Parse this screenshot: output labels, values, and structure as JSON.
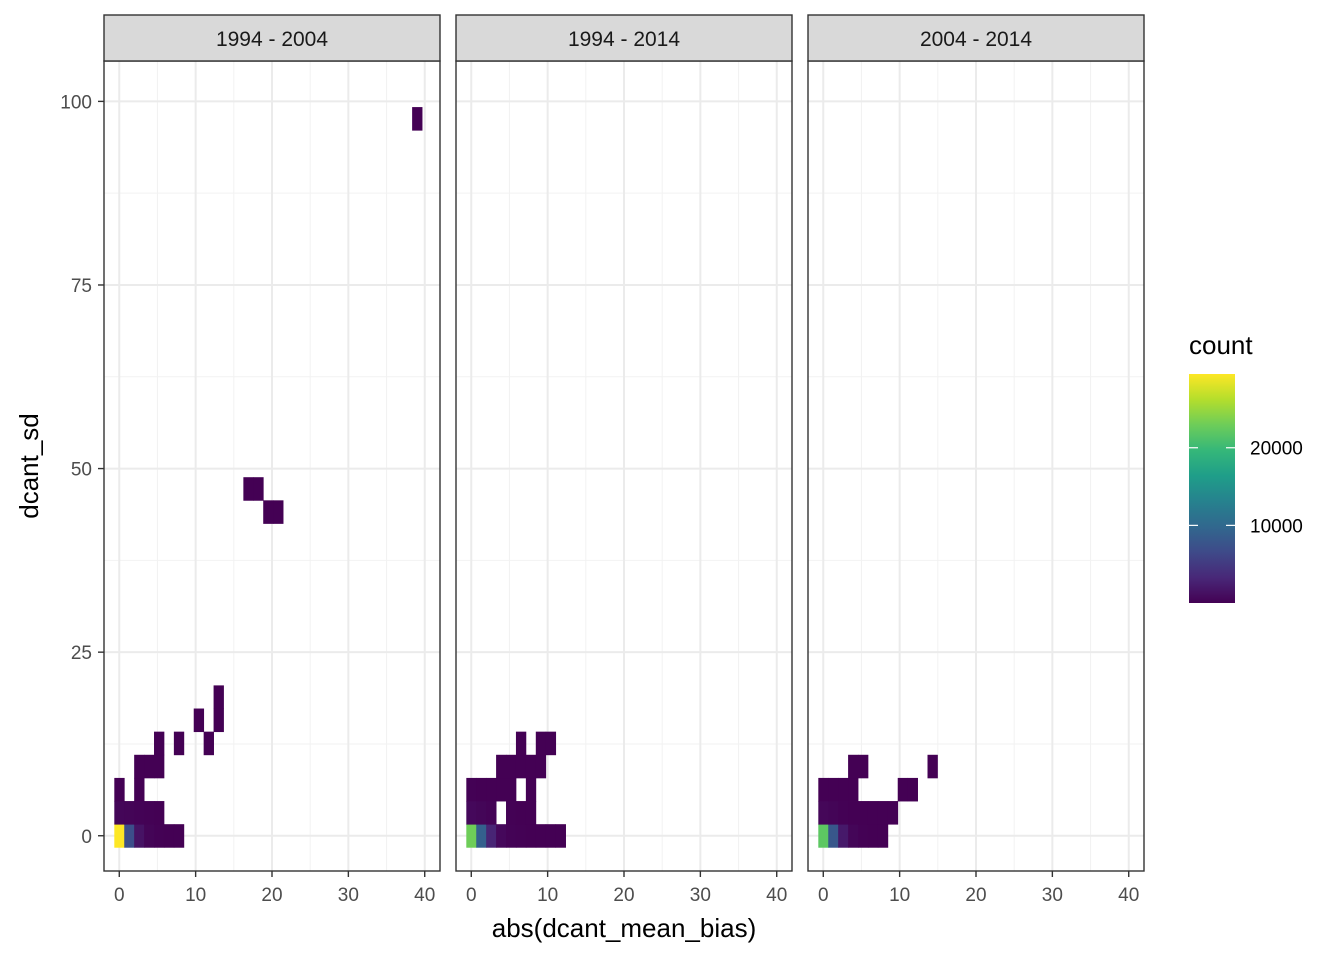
{
  "chart_data": {
    "type": "heatmap",
    "xlabel": "abs(dcant_mean_bias)",
    "ylabel": "dcant_sd",
    "xlim": [
      -2,
      42
    ],
    "ylim": [
      -4.8,
      105.5
    ],
    "x_ticks": [
      0,
      10,
      20,
      30,
      40
    ],
    "y_ticks": [
      0,
      25,
      50,
      75,
      100
    ],
    "grid": true,
    "bin_width_x": 1.3,
    "bin_height_y": 3.15,
    "legend": {
      "title": "count",
      "position": "right",
      "min": 1,
      "max": 29500,
      "ticks": [
        10000,
        20000
      ],
      "colors": [
        "#440154",
        "#482878",
        "#3E4A89",
        "#31688E",
        "#26828E",
        "#1F9E89",
        "#35B779",
        "#6DCD59",
        "#B4DE2C",
        "#FDE725"
      ]
    },
    "panels": [
      {
        "label": "1994 - 2004",
        "bins": [
          {
            "x": 0.0,
            "y": 0.0,
            "count": 29500
          },
          {
            "x": 1.3,
            "y": 0.0,
            "count": 7000
          },
          {
            "x": 2.6,
            "y": 0.0,
            "count": 1500
          },
          {
            "x": 3.9,
            "y": 0.0,
            "count": 300
          },
          {
            "x": 5.2,
            "y": 0.0,
            "count": 100
          },
          {
            "x": 6.5,
            "y": 0.0,
            "count": 20
          },
          {
            "x": 7.8,
            "y": 0.0,
            "count": 5
          },
          {
            "x": 0.0,
            "y": 3.15,
            "count": 400
          },
          {
            "x": 1.3,
            "y": 3.15,
            "count": 300
          },
          {
            "x": 2.6,
            "y": 3.15,
            "count": 150
          },
          {
            "x": 3.9,
            "y": 3.15,
            "count": 60
          },
          {
            "x": 5.2,
            "y": 3.15,
            "count": 20
          },
          {
            "x": 0.0,
            "y": 6.3,
            "count": 10
          },
          {
            "x": 2.6,
            "y": 6.3,
            "count": 5
          },
          {
            "x": 2.6,
            "y": 9.45,
            "count": 5
          },
          {
            "x": 3.9,
            "y": 9.45,
            "count": 5
          },
          {
            "x": 5.2,
            "y": 9.45,
            "count": 3
          },
          {
            "x": 5.2,
            "y": 12.6,
            "count": 2
          },
          {
            "x": 7.8,
            "y": 12.6,
            "count": 2
          },
          {
            "x": 11.7,
            "y": 12.6,
            "count": 1
          },
          {
            "x": 10.4,
            "y": 15.75,
            "count": 1
          },
          {
            "x": 13.0,
            "y": 15.75,
            "count": 1
          },
          {
            "x": 13.0,
            "y": 18.9,
            "count": 1
          },
          {
            "x": 19.5,
            "y": 44.1,
            "count": 1
          },
          {
            "x": 20.8,
            "y": 44.1,
            "count": 1
          },
          {
            "x": 16.9,
            "y": 47.25,
            "count": 1
          },
          {
            "x": 18.2,
            "y": 47.25,
            "count": 1
          },
          {
            "x": 39.0,
            "y": 97.65,
            "count": 1
          }
        ]
      },
      {
        "label": "1994 - 2014",
        "bins": [
          {
            "x": 0.0,
            "y": 0.0,
            "count": 23000
          },
          {
            "x": 1.3,
            "y": 0.0,
            "count": 9000
          },
          {
            "x": 2.6,
            "y": 0.0,
            "count": 3000
          },
          {
            "x": 3.9,
            "y": 0.0,
            "count": 600
          },
          {
            "x": 5.2,
            "y": 0.0,
            "count": 200
          },
          {
            "x": 6.5,
            "y": 0.0,
            "count": 80
          },
          {
            "x": 7.8,
            "y": 0.0,
            "count": 30
          },
          {
            "x": 9.1,
            "y": 0.0,
            "count": 10
          },
          {
            "x": 10.4,
            "y": 0.0,
            "count": 5
          },
          {
            "x": 11.7,
            "y": 0.0,
            "count": 2
          },
          {
            "x": 0.0,
            "y": 3.15,
            "count": 600
          },
          {
            "x": 1.3,
            "y": 3.15,
            "count": 400
          },
          {
            "x": 2.6,
            "y": 3.15,
            "count": 200
          },
          {
            "x": 5.2,
            "y": 3.15,
            "count": 50
          },
          {
            "x": 6.5,
            "y": 3.15,
            "count": 20
          },
          {
            "x": 7.8,
            "y": 3.15,
            "count": 10
          },
          {
            "x": 0.0,
            "y": 6.3,
            "count": 50
          },
          {
            "x": 1.3,
            "y": 6.3,
            "count": 30
          },
          {
            "x": 2.6,
            "y": 6.3,
            "count": 20
          },
          {
            "x": 3.9,
            "y": 6.3,
            "count": 10
          },
          {
            "x": 5.2,
            "y": 6.3,
            "count": 5
          },
          {
            "x": 7.8,
            "y": 6.3,
            "count": 5
          },
          {
            "x": 3.9,
            "y": 9.45,
            "count": 5
          },
          {
            "x": 5.2,
            "y": 9.45,
            "count": 4
          },
          {
            "x": 6.5,
            "y": 9.45,
            "count": 3
          },
          {
            "x": 7.8,
            "y": 9.45,
            "count": 3
          },
          {
            "x": 9.1,
            "y": 9.45,
            "count": 2
          },
          {
            "x": 6.5,
            "y": 12.6,
            "count": 2
          },
          {
            "x": 9.1,
            "y": 12.6,
            "count": 1
          },
          {
            "x": 10.4,
            "y": 12.6,
            "count": 1
          }
        ]
      },
      {
        "label": "2004 - 2014",
        "bins": [
          {
            "x": 0.0,
            "y": 0.0,
            "count": 22000
          },
          {
            "x": 1.3,
            "y": 0.0,
            "count": 8000
          },
          {
            "x": 2.6,
            "y": 0.0,
            "count": 2000
          },
          {
            "x": 3.9,
            "y": 0.0,
            "count": 400
          },
          {
            "x": 5.2,
            "y": 0.0,
            "count": 100
          },
          {
            "x": 6.5,
            "y": 0.0,
            "count": 30
          },
          {
            "x": 7.8,
            "y": 0.0,
            "count": 10
          },
          {
            "x": 0.0,
            "y": 3.15,
            "count": 500
          },
          {
            "x": 1.3,
            "y": 3.15,
            "count": 300
          },
          {
            "x": 2.6,
            "y": 3.15,
            "count": 100
          },
          {
            "x": 3.9,
            "y": 3.15,
            "count": 40
          },
          {
            "x": 5.2,
            "y": 3.15,
            "count": 20
          },
          {
            "x": 6.5,
            "y": 3.15,
            "count": 10
          },
          {
            "x": 7.8,
            "y": 3.15,
            "count": 5
          },
          {
            "x": 9.1,
            "y": 3.15,
            "count": 3
          },
          {
            "x": 0.0,
            "y": 6.3,
            "count": 30
          },
          {
            "x": 1.3,
            "y": 6.3,
            "count": 20
          },
          {
            "x": 2.6,
            "y": 6.3,
            "count": 10
          },
          {
            "x": 3.9,
            "y": 6.3,
            "count": 5
          },
          {
            "x": 10.4,
            "y": 6.3,
            "count": 2
          },
          {
            "x": 11.7,
            "y": 6.3,
            "count": 2
          },
          {
            "x": 3.9,
            "y": 9.45,
            "count": 3
          },
          {
            "x": 5.2,
            "y": 9.45,
            "count": 2
          },
          {
            "x": 14.3,
            "y": 9.45,
            "count": 1
          }
        ]
      }
    ]
  }
}
